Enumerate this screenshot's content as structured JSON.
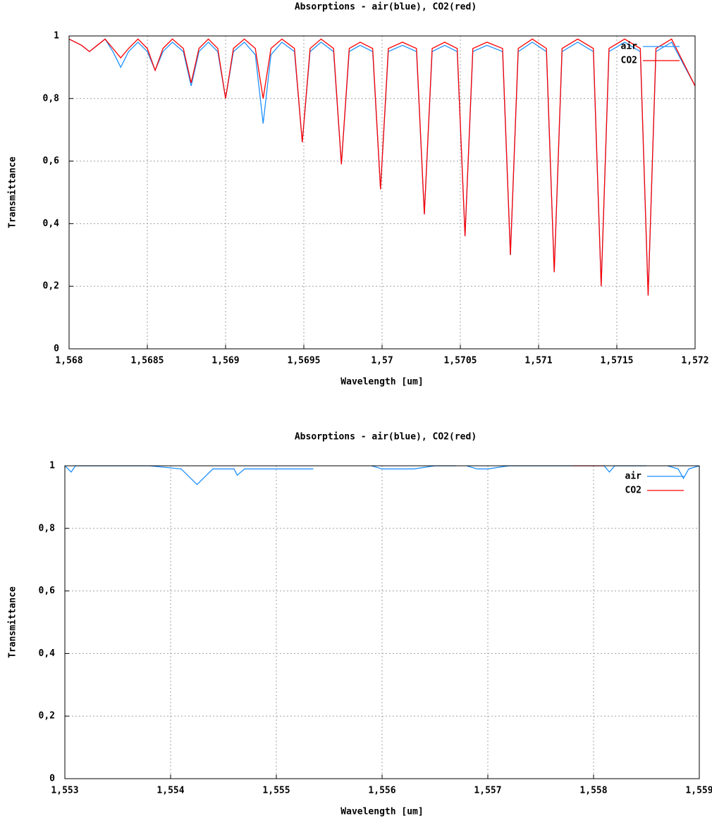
{
  "chart_data": [
    {
      "type": "line",
      "title": "Absorptions - air(blue), CO2(red)",
      "x_label": "Wavelength [um]",
      "y_label": "Transmittance",
      "grid": true,
      "legend": "top-right",
      "xlim": [
        1.568,
        1.572
      ],
      "ylim": [
        0,
        1
      ],
      "xticks": [
        {
          "value": 1.568,
          "label": "1,568"
        },
        {
          "value": 1.5685,
          "label": "1,5685"
        },
        {
          "value": 1.569,
          "label": "1,569"
        },
        {
          "value": 1.5695,
          "label": "1,5695"
        },
        {
          "value": 1.57,
          "label": "1,57"
        },
        {
          "value": 1.5705,
          "label": "1,5705"
        },
        {
          "value": 1.571,
          "label": "1,571"
        },
        {
          "value": 1.5715,
          "label": "1,5715"
        },
        {
          "value": 1.572,
          "label": "1,572"
        }
      ],
      "yticks": [
        0,
        {
          "value": 0.2,
          "label": "0,2"
        },
        {
          "value": 0.4,
          "label": "0,4"
        },
        {
          "value": 0.6,
          "label": "0,6"
        },
        {
          "value": 0.8,
          "label": "0,8"
        },
        1
      ],
      "x": [
        1.568,
        1.56808,
        1.56813,
        1.56818,
        1.56823,
        1.56828,
        1.56833,
        1.56838,
        1.56844,
        1.5685,
        1.56855,
        1.5686,
        1.56866,
        1.56873,
        1.56878,
        1.56883,
        1.56889,
        1.56895,
        1.569,
        1.56905,
        1.56912,
        1.56919,
        1.56924,
        1.56929,
        1.56936,
        1.56944,
        1.56949,
        1.56954,
        1.56961,
        1.56969,
        1.56974,
        1.56979,
        1.56986,
        1.56994,
        1.56999,
        1.57004,
        1.57013,
        1.57022,
        1.57027,
        1.57032,
        1.5704,
        1.57048,
        1.57053,
        1.57058,
        1.57067,
        1.57077,
        1.57082,
        1.57087,
        1.57096,
        1.57105,
        1.5711,
        1.57115,
        1.57125,
        1.57135,
        1.5714,
        1.57145,
        1.57155,
        1.57165,
        1.5717,
        1.57175,
        1.57185,
        1.572
      ],
      "series": [
        {
          "name": "air",
          "color": "#1e90ff",
          "values": [
            0.99,
            0.97,
            0.95,
            0.97,
            0.99,
            0.95,
            0.9,
            0.95,
            0.98,
            0.95,
            0.89,
            0.95,
            0.98,
            0.95,
            0.84,
            0.95,
            0.98,
            0.95,
            0.8,
            0.95,
            0.98,
            0.94,
            0.72,
            0.94,
            0.98,
            0.95,
            0.66,
            0.95,
            0.98,
            0.95,
            0.59,
            0.95,
            0.97,
            0.95,
            0.51,
            0.95,
            0.97,
            0.95,
            0.43,
            0.95,
            0.97,
            0.95,
            0.36,
            0.95,
            0.97,
            0.95,
            0.3,
            0.95,
            0.98,
            0.95,
            0.245,
            0.95,
            0.98,
            0.95,
            0.2,
            0.95,
            0.98,
            0.95,
            0.17,
            0.95,
            0.98,
            0.84
          ]
        },
        {
          "name": "CO2",
          "color": "#ff0000",
          "values": [
            0.99,
            0.97,
            0.95,
            0.97,
            0.99,
            0.96,
            0.93,
            0.96,
            0.99,
            0.96,
            0.89,
            0.96,
            0.99,
            0.96,
            0.85,
            0.96,
            0.99,
            0.96,
            0.8,
            0.96,
            0.99,
            0.96,
            0.8,
            0.96,
            0.99,
            0.96,
            0.66,
            0.96,
            0.99,
            0.96,
            0.59,
            0.96,
            0.98,
            0.96,
            0.51,
            0.96,
            0.98,
            0.96,
            0.43,
            0.96,
            0.98,
            0.96,
            0.36,
            0.96,
            0.98,
            0.96,
            0.3,
            0.96,
            0.99,
            0.96,
            0.245,
            0.96,
            0.99,
            0.96,
            0.2,
            0.96,
            0.99,
            0.96,
            0.17,
            0.96,
            0.99,
            0.84
          ]
        }
      ]
    },
    {
      "type": "line",
      "title": "Absorptions - air(blue), CO2(red)",
      "x_label": "Wavelength [um]",
      "y_label": "Transmittance",
      "grid": true,
      "legend": "top-right",
      "xlim": [
        1.553,
        1.559
      ],
      "ylim": [
        0,
        1
      ],
      "xticks": [
        {
          "value": 1.553,
          "label": "1,553"
        },
        {
          "value": 1.554,
          "label": "1,554"
        },
        {
          "value": 1.555,
          "label": "1,555"
        },
        {
          "value": 1.556,
          "label": "1,556"
        },
        {
          "value": 1.557,
          "label": "1,557"
        },
        {
          "value": 1.558,
          "label": "1,558"
        },
        {
          "value": 1.559,
          "label": "1,559"
        }
      ],
      "yticks": [
        0,
        {
          "value": 0.2,
          "label": "0,2"
        },
        {
          "value": 0.4,
          "label": "0,4"
        },
        {
          "value": 0.6,
          "label": "0,6"
        },
        {
          "value": 0.8,
          "label": "0,8"
        },
        1
      ],
      "x": [
        1.553,
        1.55306,
        1.5531,
        1.5538,
        1.5541,
        1.55425,
        1.5544,
        1.5546,
        1.55463,
        1.5547,
        1.555,
        1.55535,
        1.5557,
        1.5559,
        1.556,
        1.5563,
        1.5565,
        1.5567,
        1.55675,
        1.5568,
        1.5569,
        1.557,
        1.5572,
        1.5574,
        1.5578,
        1.5579,
        1.5581,
        1.55815,
        1.5582,
        1.5585,
        1.5586,
        1.5587,
        1.5588,
        1.55885,
        1.5589,
        1.559
      ],
      "series": [
        {
          "name": "air",
          "color": "#1e90ff",
          "values": [
            1,
            0.98,
            1,
            1,
            0.99,
            0.94,
            0.99,
            0.99,
            0.97,
            0.99,
            0.99,
            0.99,
            null,
            1,
            0.99,
            0.99,
            1,
            1,
            null,
            1,
            0.99,
            0.99,
            1,
            1,
            1,
            null,
            1,
            0.98,
            1,
            1,
            null,
            1,
            0.99,
            0.96,
            0.99,
            1
          ]
        },
        {
          "name": "CO2",
          "color": "#ff0000",
          "x": [
            1.5578,
            1.55795,
            1.5581
          ],
          "values": [
            1,
            1,
            1
          ]
        }
      ]
    }
  ]
}
